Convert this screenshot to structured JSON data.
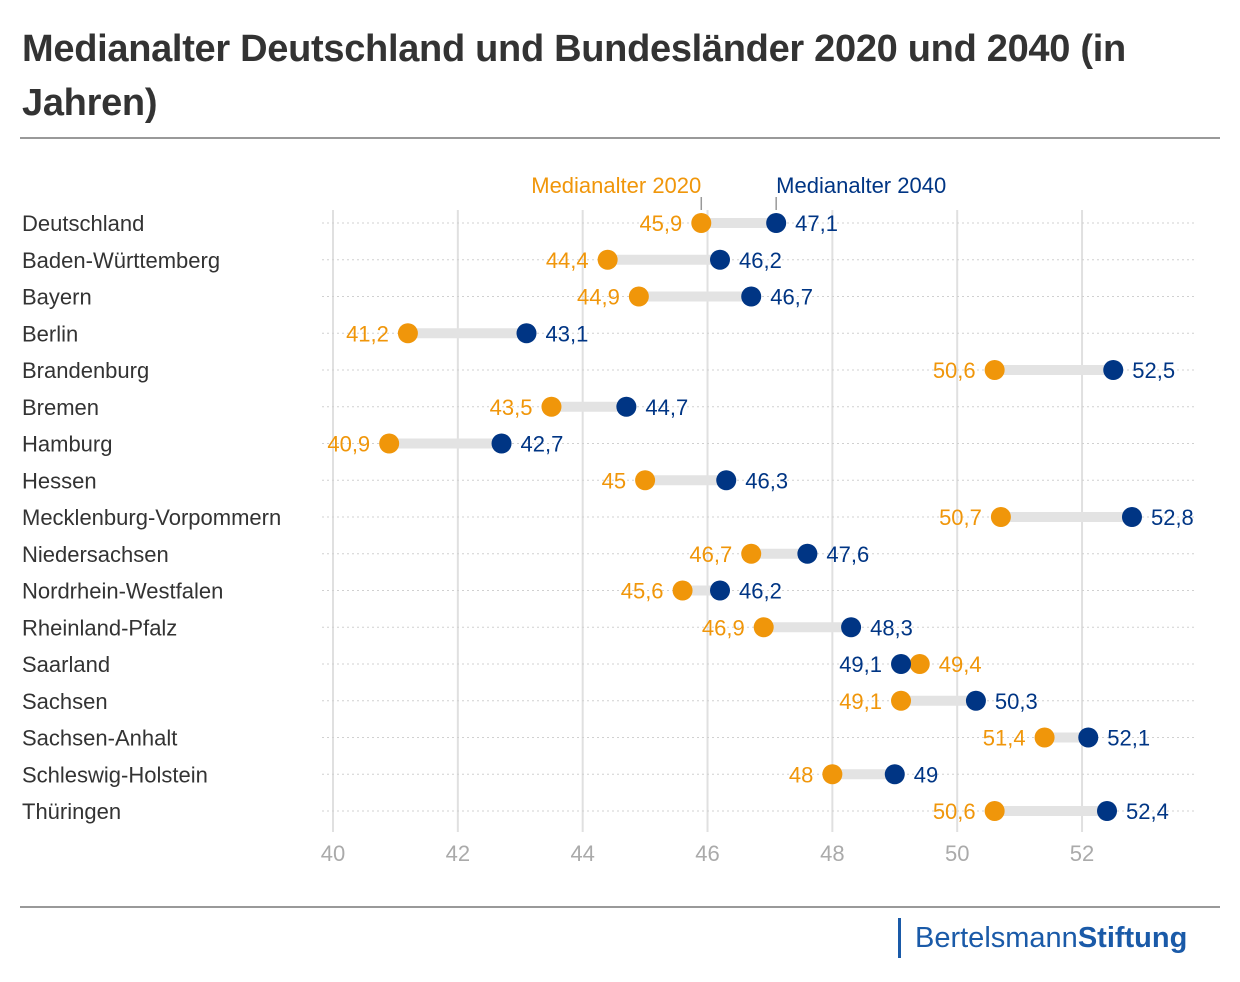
{
  "title": "Medianalter Deutschland und Bundesländer 2020 und 2040 (in Jahren)",
  "logo": {
    "part1": "Bertelsmann",
    "part2": "Stiftung"
  },
  "colors": {
    "series2020": "#f0960a",
    "series2040": "#003584",
    "connector": "#e3e3e3",
    "grid": "#e0e0e0"
  },
  "chart_data": {
    "type": "dumbbell",
    "title": "Medianalter Deutschland und Bundesländer 2020 und 2040 (in Jahren)",
    "xlim": [
      40,
      53.5
    ],
    "xticks": [
      40,
      42,
      44,
      46,
      48,
      50,
      52
    ],
    "grid": true,
    "legend_placement": "top, annotating first row",
    "categories": [
      "Deutschland",
      "Baden-Württemberg",
      "Bayern",
      "Berlin",
      "Brandenburg",
      "Bremen",
      "Hamburg",
      "Hessen",
      "Mecklenburg-Vorpommern",
      "Niedersachsen",
      "Nordrhein-Westfalen",
      "Rheinland-Pfalz",
      "Saarland",
      "Sachsen",
      "Sachsen-Anhalt",
      "Schleswig-Holstein",
      "Thüringen"
    ],
    "series": [
      {
        "name": "Medianalter 2020",
        "values": [
          45.9,
          44.4,
          44.9,
          41.2,
          50.6,
          43.5,
          40.9,
          45,
          50.7,
          46.7,
          45.6,
          46.9,
          49.4,
          49.1,
          51.4,
          48,
          50.6
        ],
        "labels": [
          "45,9",
          "44,4",
          "44,9",
          "41,2",
          "50,6",
          "43,5",
          "40,9",
          "45",
          "50,7",
          "46,7",
          "45,6",
          "46,9",
          "49,4",
          "49,1",
          "51,4",
          "48",
          "50,6"
        ]
      },
      {
        "name": "Medianalter 2040",
        "values": [
          47.1,
          46.2,
          46.7,
          43.1,
          52.5,
          44.7,
          42.7,
          46.3,
          52.8,
          47.6,
          46.2,
          48.3,
          49.1,
          50.3,
          52.1,
          49,
          52.4
        ],
        "labels": [
          "47,1",
          "46,2",
          "46,7",
          "43,1",
          "52,5",
          "44,7",
          "42,7",
          "46,3",
          "52,8",
          "47,6",
          "46,2",
          "48,3",
          "49,1",
          "50,3",
          "52,1",
          "49",
          "52,4"
        ]
      }
    ]
  }
}
